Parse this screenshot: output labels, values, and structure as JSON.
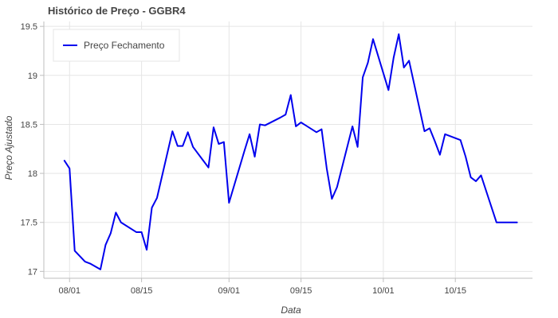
{
  "chart_data": {
    "type": "line",
    "title": "Histórico de Preço - GGBR4",
    "xlabel": "Data",
    "ylabel": "Preço Ajustado",
    "legend": {
      "placement": "top-left",
      "entries": [
        "Preço Fechamento"
      ]
    },
    "grid": true,
    "xlim": [
      "2023-07-27",
      "2023-10-30"
    ],
    "ylim": [
      16.93,
      19.55
    ],
    "x_ticks": [
      {
        "date": "2023-08-01",
        "label": "08/01"
      },
      {
        "date": "2023-08-15",
        "label": "08/15"
      },
      {
        "date": "2023-09-01",
        "label": "09/01"
      },
      {
        "date": "2023-09-15",
        "label": "09/15"
      },
      {
        "date": "2023-10-01",
        "label": "10/01"
      },
      {
        "date": "2023-10-15",
        "label": "10/15"
      }
    ],
    "y_ticks": [
      {
        "value": 17,
        "label": "17"
      },
      {
        "value": 17.5,
        "label": "17.5"
      },
      {
        "value": 18,
        "label": "18"
      },
      {
        "value": 18.5,
        "label": "18.5"
      },
      {
        "value": 19,
        "label": "19"
      },
      {
        "value": 19.5,
        "label": "19.5"
      }
    ],
    "series": [
      {
        "name": "Preço Fechamento",
        "color": "#0000ee",
        "x": [
          "2023-07-31",
          "2023-08-01",
          "2023-08-02",
          "2023-08-04",
          "2023-08-05",
          "2023-08-07",
          "2023-08-08",
          "2023-08-09",
          "2023-08-10",
          "2023-08-11",
          "2023-08-14",
          "2023-08-15",
          "2023-08-16",
          "2023-08-17",
          "2023-08-18",
          "2023-08-21",
          "2023-08-22",
          "2023-08-23",
          "2023-08-24",
          "2023-08-25",
          "2023-08-28",
          "2023-08-29",
          "2023-08-30",
          "2023-08-31",
          "2023-09-01",
          "2023-09-04",
          "2023-09-05",
          "2023-09-06",
          "2023-09-07",
          "2023-09-08",
          "2023-09-11",
          "2023-09-12",
          "2023-09-13",
          "2023-09-14",
          "2023-09-15",
          "2023-09-18",
          "2023-09-19",
          "2023-09-20",
          "2023-09-21",
          "2023-09-22",
          "2023-09-25",
          "2023-09-26",
          "2023-09-27",
          "2023-09-28",
          "2023-09-29",
          "2023-10-02",
          "2023-10-03",
          "2023-10-04",
          "2023-10-05",
          "2023-10-06",
          "2023-10-09",
          "2023-10-10",
          "2023-10-11",
          "2023-10-12",
          "2023-10-13",
          "2023-10-16",
          "2023-10-17",
          "2023-10-18",
          "2023-10-19",
          "2023-10-20",
          "2023-10-23",
          "2023-10-24",
          "2023-10-25",
          "2023-10-26",
          "2023-10-27"
        ],
        "y": [
          18.13,
          18.05,
          17.21,
          17.1,
          17.08,
          17.02,
          17.27,
          17.39,
          17.6,
          17.5,
          17.4,
          17.4,
          17.22,
          17.65,
          17.75,
          18.43,
          18.28,
          18.28,
          18.42,
          18.27,
          18.06,
          18.47,
          18.3,
          18.32,
          17.7,
          18.23,
          18.4,
          18.17,
          18.5,
          18.49,
          18.57,
          18.6,
          18.8,
          18.48,
          18.52,
          18.42,
          18.45,
          18.05,
          17.74,
          17.86,
          18.48,
          18.27,
          18.98,
          19.13,
          19.37,
          18.85,
          19.18,
          19.42,
          19.08,
          19.15,
          18.43,
          18.46,
          18.33,
          18.19,
          18.4,
          18.34,
          18.17,
          17.96,
          17.92,
          17.98,
          17.5,
          17.5,
          17.5,
          17.5,
          17.5
        ]
      }
    ]
  }
}
